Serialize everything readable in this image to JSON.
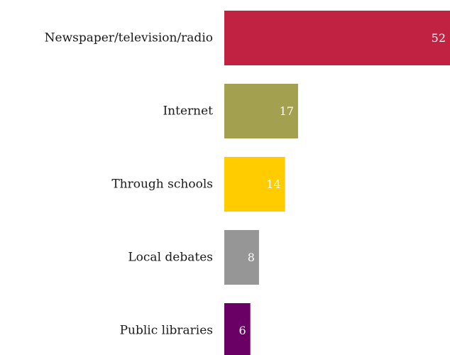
{
  "chart_data": {
    "type": "bar",
    "orientation": "horizontal",
    "categories": [
      "Newspaper/television/radio",
      "Internet",
      "Through schools",
      "Local debates",
      "Public libraries"
    ],
    "values": [
      52,
      17,
      14,
      8,
      6
    ],
    "colors": [
      "#c22241",
      "#a3a050",
      "#ffcc00",
      "#969696",
      "#6a0066"
    ],
    "value_label_color": "#ffffff",
    "xlim": [
      0,
      52
    ],
    "grid": false,
    "legend": "none"
  }
}
